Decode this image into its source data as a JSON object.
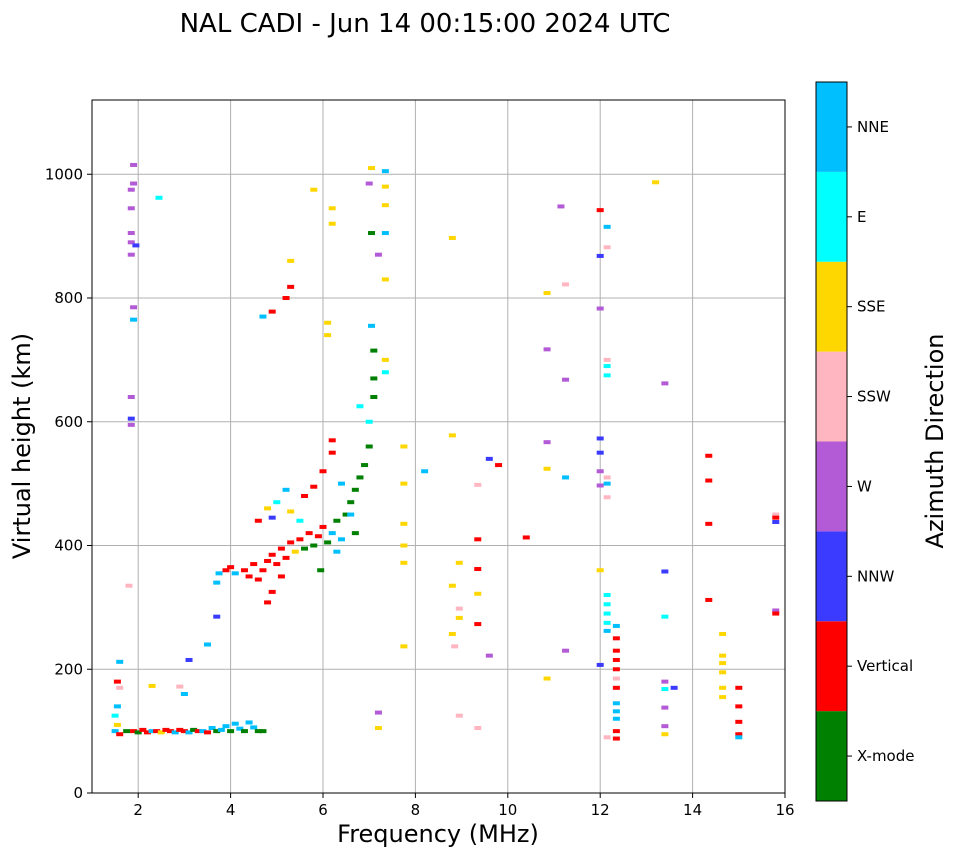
{
  "chart_data": {
    "type": "scatter",
    "title": "NAL CADI - Jun 14 00:15:00 2024 UTC",
    "xlabel": "Frequency (MHz)",
    "ylabel": "Virtual height (km)",
    "xlim": [
      1.0,
      16.0
    ],
    "ylim": [
      0,
      1120
    ],
    "xticks": [
      2,
      4,
      6,
      8,
      10,
      12,
      14,
      16
    ],
    "yticks": [
      0,
      200,
      400,
      600,
      800,
      1000
    ],
    "grid": true,
    "colorbar": {
      "label": "Azimuth Direction",
      "categories": [
        {
          "name": "X-mode",
          "color": "#008000"
        },
        {
          "name": "Vertical",
          "color": "#ff0000"
        },
        {
          "name": "NNW",
          "color": "#3b3bff"
        },
        {
          "name": "W",
          "color": "#b35ad6"
        },
        {
          "name": "SSW",
          "color": "#ffb6c1"
        },
        {
          "name": "SSE",
          "color": "#ffd700"
        },
        {
          "name": "E",
          "color": "#00ffff"
        },
        {
          "name": "NNE",
          "color": "#00bfff"
        }
      ]
    },
    "echoes": [
      {
        "f": 1.5,
        "h": 100,
        "c": "NNE"
      },
      {
        "f": 1.55,
        "h": 110,
        "c": "SSE"
      },
      {
        "f": 1.5,
        "h": 125,
        "c": "E"
      },
      {
        "f": 1.55,
        "h": 140,
        "c": "NNE"
      },
      {
        "f": 1.6,
        "h": 95,
        "c": "Vertical"
      },
      {
        "f": 1.6,
        "h": 170,
        "c": "SSW"
      },
      {
        "f": 1.55,
        "h": 180,
        "c": "Vertical"
      },
      {
        "f": 1.6,
        "h": 212,
        "c": "NNE"
      },
      {
        "f": 1.75,
        "h": 100,
        "c": "X-mode"
      },
      {
        "f": 1.9,
        "h": 100,
        "c": "Vertical"
      },
      {
        "f": 2.0,
        "h": 98,
        "c": "X-mode"
      },
      {
        "f": 2.1,
        "h": 102,
        "c": "Vertical"
      },
      {
        "f": 2.2,
        "h": 98,
        "c": "Vertical"
      },
      {
        "f": 2.3,
        "h": 100,
        "c": "NNE"
      },
      {
        "f": 2.4,
        "h": 100,
        "c": "Vertical"
      },
      {
        "f": 2.5,
        "h": 98,
        "c": "SSE"
      },
      {
        "f": 2.6,
        "h": 102,
        "c": "Vertical"
      },
      {
        "f": 2.7,
        "h": 100,
        "c": "Vertical"
      },
      {
        "f": 2.8,
        "h": 98,
        "c": "NNE"
      },
      {
        "f": 2.9,
        "h": 102,
        "c": "Vertical"
      },
      {
        "f": 3.0,
        "h": 100,
        "c": "Vertical"
      },
      {
        "f": 3.1,
        "h": 98,
        "c": "NNE"
      },
      {
        "f": 3.2,
        "h": 102,
        "c": "X-mode"
      },
      {
        "f": 3.3,
        "h": 100,
        "c": "Vertical"
      },
      {
        "f": 3.4,
        "h": 100,
        "c": "NNE"
      },
      {
        "f": 3.5,
        "h": 98,
        "c": "Vertical"
      },
      {
        "f": 3.6,
        "h": 105,
        "c": "NNE"
      },
      {
        "f": 3.7,
        "h": 100,
        "c": "X-mode"
      },
      {
        "f": 3.8,
        "h": 102,
        "c": "NNE"
      },
      {
        "f": 3.9,
        "h": 108,
        "c": "NNE"
      },
      {
        "f": 4.0,
        "h": 100,
        "c": "X-mode"
      },
      {
        "f": 4.1,
        "h": 112,
        "c": "NNE"
      },
      {
        "f": 4.2,
        "h": 104,
        "c": "NNE"
      },
      {
        "f": 4.3,
        "h": 100,
        "c": "X-mode"
      },
      {
        "f": 4.4,
        "h": 114,
        "c": "NNE"
      },
      {
        "f": 4.5,
        "h": 106,
        "c": "NNE"
      },
      {
        "f": 4.6,
        "h": 100,
        "c": "X-mode"
      },
      {
        "f": 4.7,
        "h": 100,
        "c": "X-mode"
      },
      {
        "f": 3.0,
        "h": 160,
        "c": "NNE"
      },
      {
        "f": 2.3,
        "h": 173,
        "c": "SSE"
      },
      {
        "f": 2.9,
        "h": 172,
        "c": "SSW"
      },
      {
        "f": 3.1,
        "h": 215,
        "c": "NNW"
      },
      {
        "f": 3.5,
        "h": 240,
        "c": "NNE"
      },
      {
        "f": 3.7,
        "h": 285,
        "c": "NNW"
      },
      {
        "f": 3.7,
        "h": 340,
        "c": "NNE"
      },
      {
        "f": 3.75,
        "h": 355,
        "c": "NNE"
      },
      {
        "f": 3.9,
        "h": 360,
        "c": "Vertical"
      },
      {
        "f": 4.0,
        "h": 365,
        "c": "Vertical"
      },
      {
        "f": 4.1,
        "h": 355,
        "c": "NNE"
      },
      {
        "f": 4.3,
        "h": 360,
        "c": "Vertical"
      },
      {
        "f": 4.4,
        "h": 350,
        "c": "Vertical"
      },
      {
        "f": 4.5,
        "h": 370,
        "c": "Vertical"
      },
      {
        "f": 4.6,
        "h": 345,
        "c": "Vertical"
      },
      {
        "f": 4.7,
        "h": 360,
        "c": "Vertical"
      },
      {
        "f": 4.8,
        "h": 375,
        "c": "Vertical"
      },
      {
        "f": 4.9,
        "h": 385,
        "c": "Vertical"
      },
      {
        "f": 5.0,
        "h": 370,
        "c": "Vertical"
      },
      {
        "f": 5.1,
        "h": 395,
        "c": "Vertical"
      },
      {
        "f": 5.2,
        "h": 380,
        "c": "Vertical"
      },
      {
        "f": 5.3,
        "h": 405,
        "c": "Vertical"
      },
      {
        "f": 5.4,
        "h": 390,
        "c": "SSE"
      },
      {
        "f": 5.5,
        "h": 410,
        "c": "Vertical"
      },
      {
        "f": 5.6,
        "h": 395,
        "c": "X-mode"
      },
      {
        "f": 5.7,
        "h": 420,
        "c": "Vertical"
      },
      {
        "f": 5.8,
        "h": 400,
        "c": "X-mode"
      },
      {
        "f": 5.9,
        "h": 415,
        "c": "Vertical"
      },
      {
        "f": 6.0,
        "h": 430,
        "c": "Vertical"
      },
      {
        "f": 6.1,
        "h": 405,
        "c": "X-mode"
      },
      {
        "f": 6.2,
        "h": 420,
        "c": "NNE"
      },
      {
        "f": 6.3,
        "h": 440,
        "c": "X-mode"
      },
      {
        "f": 6.4,
        "h": 410,
        "c": "NNE"
      },
      {
        "f": 6.5,
        "h": 450,
        "c": "X-mode"
      },
      {
        "f": 6.6,
        "h": 470,
        "c": "X-mode"
      },
      {
        "f": 6.7,
        "h": 490,
        "c": "X-mode"
      },
      {
        "f": 6.8,
        "h": 510,
        "c": "X-mode"
      },
      {
        "f": 6.9,
        "h": 530,
        "c": "X-mode"
      },
      {
        "f": 7.0,
        "h": 560,
        "c": "X-mode"
      },
      {
        "f": 7.0,
        "h": 600,
        "c": "E"
      },
      {
        "f": 7.1,
        "h": 640,
        "c": "X-mode"
      },
      {
        "f": 7.1,
        "h": 670,
        "c": "X-mode"
      },
      {
        "f": 7.1,
        "h": 715,
        "c": "X-mode"
      },
      {
        "f": 6.8,
        "h": 625,
        "c": "E"
      },
      {
        "f": 6.2,
        "h": 570,
        "c": "Vertical"
      },
      {
        "f": 6.2,
        "h": 550,
        "c": "Vertical"
      },
      {
        "f": 6.0,
        "h": 520,
        "c": "Vertical"
      },
      {
        "f": 5.8,
        "h": 495,
        "c": "Vertical"
      },
      {
        "f": 5.6,
        "h": 480,
        "c": "Vertical"
      },
      {
        "f": 5.2,
        "h": 490,
        "c": "NNE"
      },
      {
        "f": 5.0,
        "h": 470,
        "c": "E"
      },
      {
        "f": 4.8,
        "h": 460,
        "c": "SSE"
      },
      {
        "f": 4.6,
        "h": 440,
        "c": "Vertical"
      },
      {
        "f": 4.9,
        "h": 445,
        "c": "NNW"
      },
      {
        "f": 5.3,
        "h": 455,
        "c": "SSE"
      },
      {
        "f": 5.5,
        "h": 440,
        "c": "E"
      },
      {
        "f": 6.4,
        "h": 500,
        "c": "NNE"
      },
      {
        "f": 6.6,
        "h": 450,
        "c": "NNE"
      },
      {
        "f": 6.7,
        "h": 420,
        "c": "X-mode"
      },
      {
        "f": 6.3,
        "h": 390,
        "c": "NNE"
      },
      {
        "f": 5.95,
        "h": 360,
        "c": "X-mode"
      },
      {
        "f": 5.1,
        "h": 350,
        "c": "Vertical"
      },
      {
        "f": 4.9,
        "h": 325,
        "c": "Vertical"
      },
      {
        "f": 4.8,
        "h": 308,
        "c": "Vertical"
      },
      {
        "f": 4.7,
        "h": 770,
        "c": "NNE"
      },
      {
        "f": 4.9,
        "h": 778,
        "c": "Vertical"
      },
      {
        "f": 5.3,
        "h": 818,
        "c": "Vertical"
      },
      {
        "f": 5.2,
        "h": 800,
        "c": "Vertical"
      },
      {
        "f": 5.3,
        "h": 860,
        "c": "SSE"
      },
      {
        "f": 5.8,
        "h": 975,
        "c": "SSE"
      },
      {
        "f": 6.2,
        "h": 945,
        "c": "SSE"
      },
      {
        "f": 6.2,
        "h": 920,
        "c": "SSE"
      },
      {
        "f": 6.1,
        "h": 740,
        "c": "SSE"
      },
      {
        "f": 6.1,
        "h": 760,
        "c": "SSE"
      },
      {
        "f": 7.05,
        "h": 1010,
        "c": "SSE"
      },
      {
        "f": 7.0,
        "h": 985,
        "c": "W"
      },
      {
        "f": 7.05,
        "h": 905,
        "c": "X-mode"
      },
      {
        "f": 7.05,
        "h": 755,
        "c": "NNE"
      },
      {
        "f": 7.35,
        "h": 1005,
        "c": "NNE"
      },
      {
        "f": 7.35,
        "h": 980,
        "c": "SSE"
      },
      {
        "f": 7.35,
        "h": 950,
        "c": "SSE"
      },
      {
        "f": 7.35,
        "h": 905,
        "c": "NNE"
      },
      {
        "f": 7.35,
        "h": 830,
        "c": "SSE"
      },
      {
        "f": 7.35,
        "h": 700,
        "c": "SSE"
      },
      {
        "f": 7.35,
        "h": 680,
        "c": "E"
      },
      {
        "f": 7.2,
        "h": 870,
        "c": "W"
      },
      {
        "f": 7.2,
        "h": 130,
        "c": "W"
      },
      {
        "f": 7.2,
        "h": 105,
        "c": "SSE"
      },
      {
        "f": 7.75,
        "h": 560,
        "c": "SSE"
      },
      {
        "f": 7.75,
        "h": 500,
        "c": "SSE"
      },
      {
        "f": 7.75,
        "h": 435,
        "c": "SSE"
      },
      {
        "f": 7.75,
        "h": 400,
        "c": "SSE"
      },
      {
        "f": 7.75,
        "h": 372,
        "c": "SSE"
      },
      {
        "f": 7.75,
        "h": 237,
        "c": "SSE"
      },
      {
        "f": 8.2,
        "h": 520,
        "c": "NNE"
      },
      {
        "f": 8.8,
        "h": 897,
        "c": "SSE"
      },
      {
        "f": 8.8,
        "h": 578,
        "c": "SSE"
      },
      {
        "f": 8.8,
        "h": 257,
        "c": "SSE"
      },
      {
        "f": 8.8,
        "h": 335,
        "c": "SSE"
      },
      {
        "f": 8.95,
        "h": 372,
        "c": "SSE"
      },
      {
        "f": 8.95,
        "h": 283,
        "c": "SSE"
      },
      {
        "f": 8.95,
        "h": 298,
        "c": "SSW"
      },
      {
        "f": 8.85,
        "h": 237,
        "c": "SSW"
      },
      {
        "f": 8.95,
        "h": 125,
        "c": "SSW"
      },
      {
        "f": 9.35,
        "h": 498,
        "c": "SSW"
      },
      {
        "f": 9.35,
        "h": 410,
        "c": "Vertical"
      },
      {
        "f": 9.35,
        "h": 362,
        "c": "Vertical"
      },
      {
        "f": 9.35,
        "h": 322,
        "c": "SSE"
      },
      {
        "f": 9.35,
        "h": 273,
        "c": "Vertical"
      },
      {
        "f": 9.35,
        "h": 105,
        "c": "SSW"
      },
      {
        "f": 9.6,
        "h": 540,
        "c": "NNW"
      },
      {
        "f": 9.8,
        "h": 530,
        "c": "Vertical"
      },
      {
        "f": 9.6,
        "h": 222,
        "c": "W"
      },
      {
        "f": 10.4,
        "h": 413,
        "c": "Vertical"
      },
      {
        "f": 10.85,
        "h": 808,
        "c": "SSE"
      },
      {
        "f": 10.85,
        "h": 717,
        "c": "W"
      },
      {
        "f": 10.85,
        "h": 567,
        "c": "W"
      },
      {
        "f": 10.85,
        "h": 524,
        "c": "SSE"
      },
      {
        "f": 10.85,
        "h": 185,
        "c": "SSE"
      },
      {
        "f": 11.15,
        "h": 948,
        "c": "W"
      },
      {
        "f": 11.25,
        "h": 822,
        "c": "SSW"
      },
      {
        "f": 11.25,
        "h": 668,
        "c": "W"
      },
      {
        "f": 11.25,
        "h": 510,
        "c": "NNE"
      },
      {
        "f": 11.25,
        "h": 230,
        "c": "W"
      },
      {
        "f": 12.0,
        "h": 942,
        "c": "Vertical"
      },
      {
        "f": 12.0,
        "h": 868,
        "c": "NNW"
      },
      {
        "f": 12.0,
        "h": 783,
        "c": "W"
      },
      {
        "f": 12.0,
        "h": 573,
        "c": "NNW"
      },
      {
        "f": 12.0,
        "h": 550,
        "c": "NNW"
      },
      {
        "f": 12.0,
        "h": 520,
        "c": "W"
      },
      {
        "f": 12.0,
        "h": 497,
        "c": "W"
      },
      {
        "f": 12.0,
        "h": 360,
        "c": "SSE"
      },
      {
        "f": 12.0,
        "h": 207,
        "c": "NNW"
      },
      {
        "f": 12.15,
        "h": 915,
        "c": "NNE"
      },
      {
        "f": 12.15,
        "h": 882,
        "c": "SSW"
      },
      {
        "f": 12.15,
        "h": 700,
        "c": "SSW"
      },
      {
        "f": 12.15,
        "h": 690,
        "c": "E"
      },
      {
        "f": 12.15,
        "h": 675,
        "c": "E"
      },
      {
        "f": 12.15,
        "h": 510,
        "c": "SSW"
      },
      {
        "f": 12.15,
        "h": 500,
        "c": "NNE"
      },
      {
        "f": 12.15,
        "h": 478,
        "c": "SSW"
      },
      {
        "f": 12.15,
        "h": 320,
        "c": "E"
      },
      {
        "f": 12.15,
        "h": 305,
        "c": "E"
      },
      {
        "f": 12.15,
        "h": 290,
        "c": "E"
      },
      {
        "f": 12.15,
        "h": 275,
        "c": "E"
      },
      {
        "f": 12.15,
        "h": 262,
        "c": "NNE"
      },
      {
        "f": 12.15,
        "h": 90,
        "c": "SSW"
      },
      {
        "f": 12.35,
        "h": 270,
        "c": "NNE"
      },
      {
        "f": 12.35,
        "h": 250,
        "c": "Vertical"
      },
      {
        "f": 12.35,
        "h": 230,
        "c": "Vertical"
      },
      {
        "f": 12.35,
        "h": 215,
        "c": "Vertical"
      },
      {
        "f": 12.35,
        "h": 200,
        "c": "Vertical"
      },
      {
        "f": 12.35,
        "h": 185,
        "c": "SSW"
      },
      {
        "f": 12.35,
        "h": 170,
        "c": "Vertical"
      },
      {
        "f": 12.35,
        "h": 145,
        "c": "NNE"
      },
      {
        "f": 12.35,
        "h": 132,
        "c": "NNE"
      },
      {
        "f": 12.35,
        "h": 120,
        "c": "NNE"
      },
      {
        "f": 12.35,
        "h": 100,
        "c": "Vertical"
      },
      {
        "f": 12.35,
        "h": 88,
        "c": "Vertical"
      },
      {
        "f": 13.2,
        "h": 987,
        "c": "SSE"
      },
      {
        "f": 13.4,
        "h": 662,
        "c": "W"
      },
      {
        "f": 13.4,
        "h": 358,
        "c": "NNW"
      },
      {
        "f": 13.4,
        "h": 285,
        "c": "E"
      },
      {
        "f": 13.4,
        "h": 180,
        "c": "W"
      },
      {
        "f": 13.4,
        "h": 168,
        "c": "E"
      },
      {
        "f": 13.4,
        "h": 138,
        "c": "W"
      },
      {
        "f": 13.4,
        "h": 108,
        "c": "W"
      },
      {
        "f": 13.4,
        "h": 95,
        "c": "SSE"
      },
      {
        "f": 13.6,
        "h": 170,
        "c": "NNW"
      },
      {
        "f": 14.35,
        "h": 545,
        "c": "Vertical"
      },
      {
        "f": 14.35,
        "h": 505,
        "c": "Vertical"
      },
      {
        "f": 14.35,
        "h": 435,
        "c": "Vertical"
      },
      {
        "f": 14.35,
        "h": 312,
        "c": "Vertical"
      },
      {
        "f": 14.65,
        "h": 257,
        "c": "SSE"
      },
      {
        "f": 14.65,
        "h": 222,
        "c": "SSE"
      },
      {
        "f": 14.65,
        "h": 210,
        "c": "SSE"
      },
      {
        "f": 14.65,
        "h": 195,
        "c": "SSE"
      },
      {
        "f": 14.65,
        "h": 170,
        "c": "SSE"
      },
      {
        "f": 14.65,
        "h": 155,
        "c": "SSE"
      },
      {
        "f": 15.0,
        "h": 170,
        "c": "Vertical"
      },
      {
        "f": 15.0,
        "h": 140,
        "c": "Vertical"
      },
      {
        "f": 15.0,
        "h": 115,
        "c": "Vertical"
      },
      {
        "f": 15.0,
        "h": 95,
        "c": "Vertical"
      },
      {
        "f": 15.0,
        "h": 90,
        "c": "NNE"
      },
      {
        "f": 15.8,
        "h": 450,
        "c": "SSW"
      },
      {
        "f": 15.8,
        "h": 445,
        "c": "Vertical"
      },
      {
        "f": 15.8,
        "h": 438,
        "c": "NNW"
      },
      {
        "f": 15.8,
        "h": 295,
        "c": "W"
      },
      {
        "f": 15.8,
        "h": 290,
        "c": "Vertical"
      },
      {
        "f": 1.9,
        "h": 1015,
        "c": "W"
      },
      {
        "f": 1.9,
        "h": 985,
        "c": "W"
      },
      {
        "f": 1.85,
        "h": 975,
        "c": "W"
      },
      {
        "f": 2.45,
        "h": 962,
        "c": "E"
      },
      {
        "f": 1.85,
        "h": 945,
        "c": "W"
      },
      {
        "f": 1.85,
        "h": 905,
        "c": "W"
      },
      {
        "f": 1.85,
        "h": 890,
        "c": "W"
      },
      {
        "f": 1.95,
        "h": 885,
        "c": "NNW"
      },
      {
        "f": 1.85,
        "h": 870,
        "c": "W"
      },
      {
        "f": 1.9,
        "h": 785,
        "c": "W"
      },
      {
        "f": 1.9,
        "h": 765,
        "c": "NNE"
      },
      {
        "f": 1.85,
        "h": 640,
        "c": "W"
      },
      {
        "f": 1.85,
        "h": 605,
        "c": "NNW"
      },
      {
        "f": 1.85,
        "h": 595,
        "c": "W"
      },
      {
        "f": 1.8,
        "h": 335,
        "c": "SSW"
      }
    ]
  }
}
